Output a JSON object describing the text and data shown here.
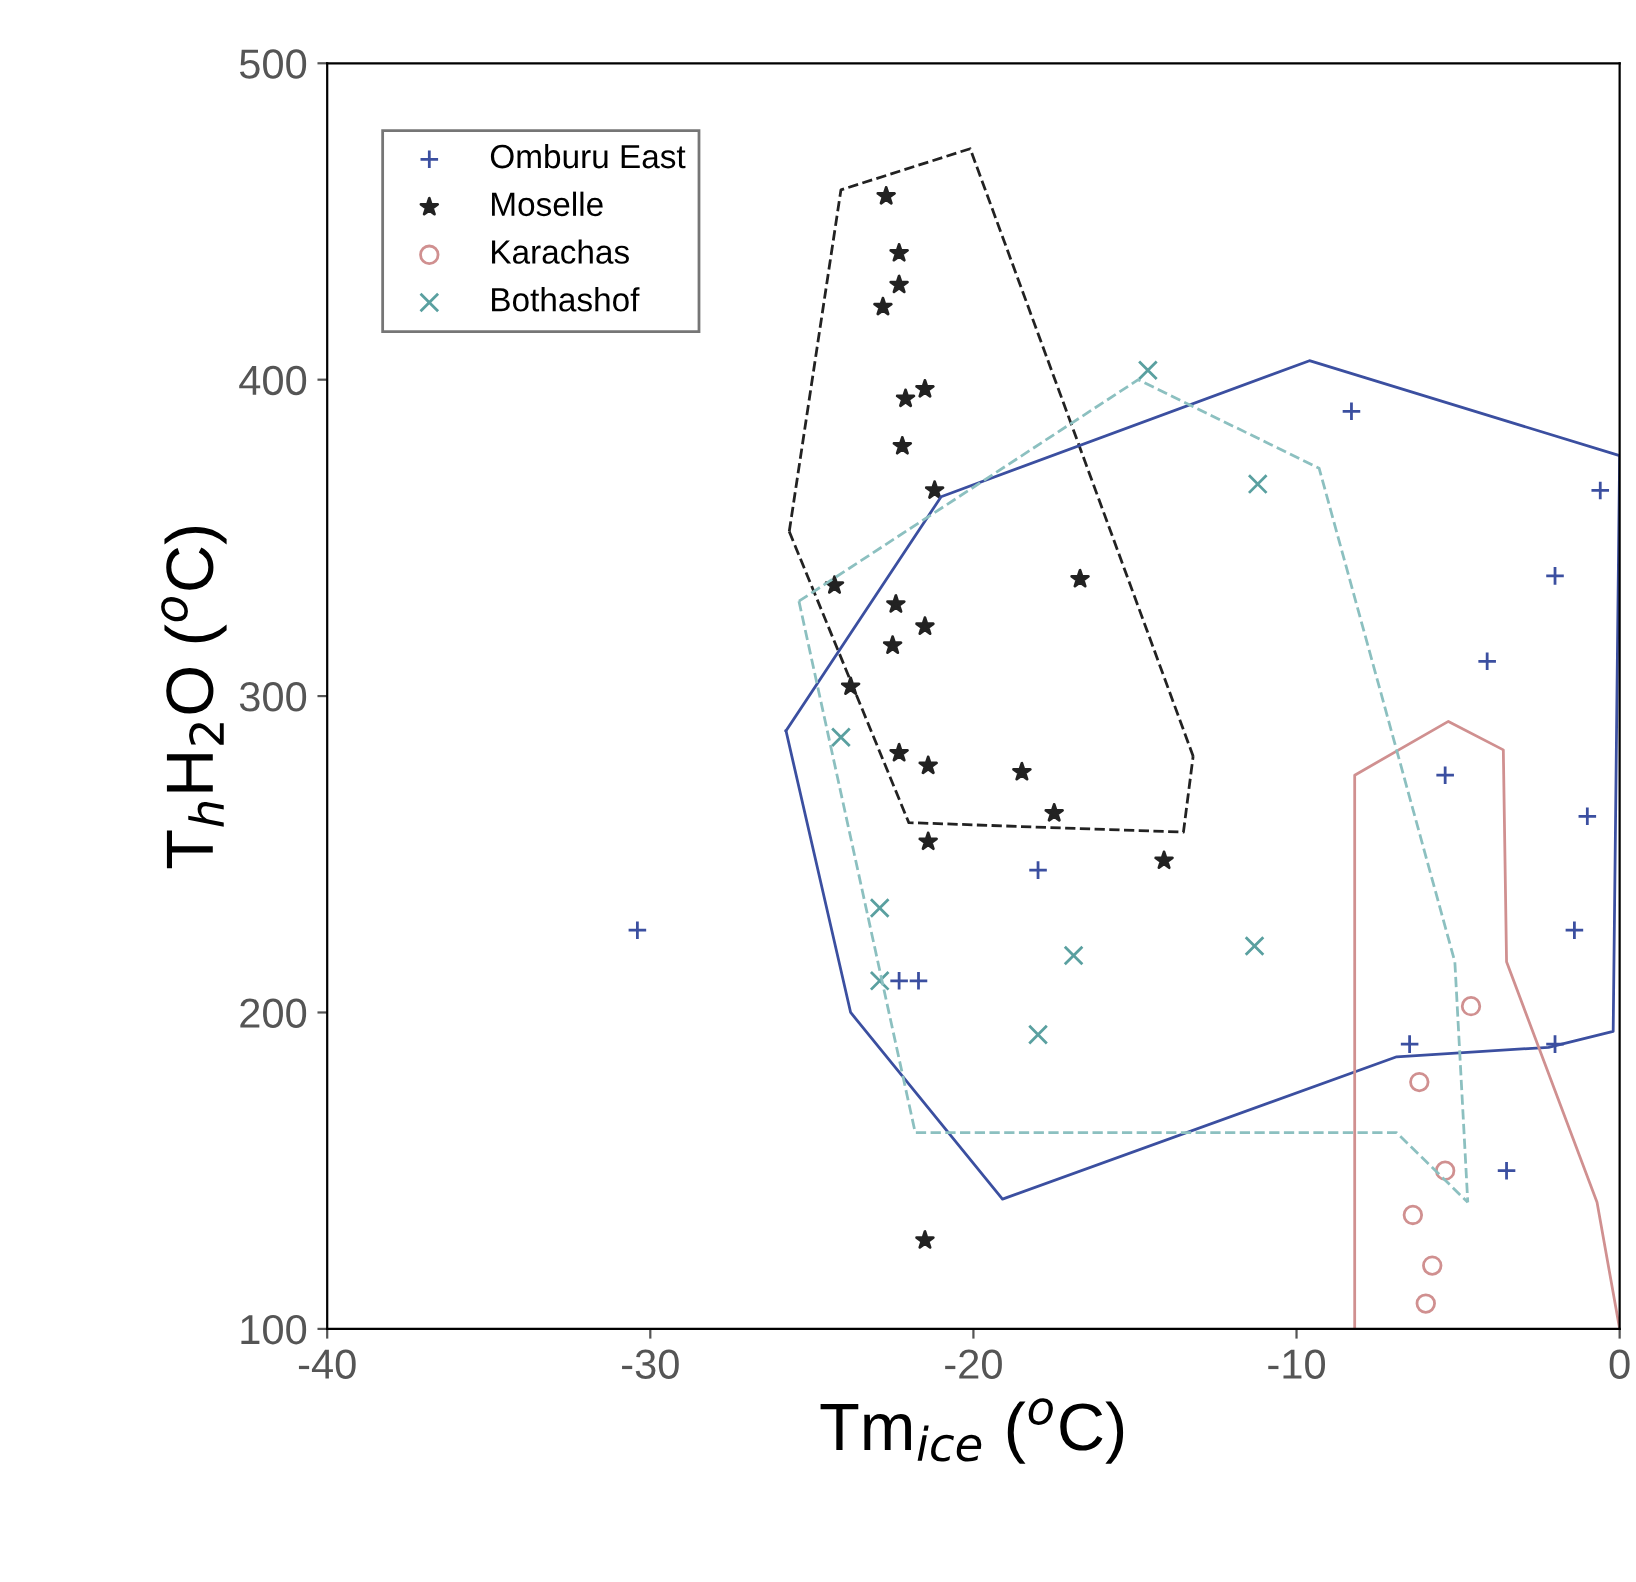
{
  "chart_data": {
    "type": "scatter",
    "xlabel": "Tm$_{ice}$ ($^{o}$C)",
    "ylabel": "T$_{h}$H$_{2}$O ($^{o}$C)",
    "xlim": [
      -40,
      0
    ],
    "ylim": [
      100,
      500
    ],
    "xticks": [
      -40,
      -30,
      -20,
      -10,
      0
    ],
    "yticks": [
      100,
      200,
      300,
      400,
      500
    ],
    "grid": false,
    "legend": "top left",
    "series": [
      {
        "name": "Omburu East",
        "color": "#3b4fa0",
        "marker": "plus",
        "x": [
          -30.4,
          -8.3,
          -2.0,
          -4.1,
          -5.4,
          -1.0,
          -1.4,
          -6.5,
          -2.0,
          -3.5,
          -22.3,
          -21.7,
          -18.0,
          -0.6
        ],
        "values": [
          226,
          390,
          338,
          311,
          275,
          262,
          226,
          190,
          190,
          150,
          210,
          210,
          245,
          365
        ]
      },
      {
        "name": "Moselle",
        "color": "#222222",
        "marker": "star",
        "x": [
          -22.7,
          -22.3,
          -22.3,
          -22.8,
          -21.5,
          -22.1,
          -22.2,
          -21.2,
          -24.3,
          -22.4,
          -21.5,
          -22.5,
          -23.8,
          -22.3,
          -21.4,
          -21.4,
          -16.7,
          -18.5,
          -17.5,
          -14.1,
          -21.5
        ],
        "values": [
          458,
          440,
          430,
          423,
          397,
          394,
          379,
          365,
          335,
          329,
          322,
          316,
          303,
          282,
          278,
          254,
          337,
          276,
          263,
          248,
          128
        ]
      },
      {
        "name": "Karachas",
        "color": "#d09090",
        "marker": "circle",
        "x": [
          -4.6,
          -6.2,
          -5.4,
          -6.4,
          -5.8,
          -6.0
        ],
        "values": [
          202,
          178,
          150,
          136,
          120,
          108
        ]
      },
      {
        "name": "Bothashof",
        "color": "#5aa0a0",
        "marker": "cross",
        "x": [
          -22.9,
          -22.9,
          -24.1,
          -16.9,
          -18.0,
          -11.3,
          -11.2,
          -14.6
        ],
        "values": [
          233,
          210,
          287,
          218,
          193,
          221,
          367,
          403
        ]
      },
      {
        "type": "line",
        "color": "#222222",
        "line_style": "dashed",
        "x": [
          -25.7,
          -24.1,
          -20.1,
          -13.2
        ],
        "values": [
          352,
          460,
          473,
          281
        ]
      },
      {
        "type": "line",
        "color": "#222222",
        "line_style": "dashed",
        "x": [
          -25.7,
          -22.0,
          -13.5,
          -13.2
        ],
        "values": [
          352,
          260,
          257,
          281
        ]
      },
      {
        "type": "line",
        "color": "#3b4fa0",
        "line_style": "solid",
        "x": [
          -25.8,
          -21.0,
          -9.6,
          0
        ],
        "values": [
          289,
          363,
          406,
          376
        ]
      },
      {
        "type": "line",
        "color": "#3b4fa0",
        "line_style": "solid",
        "x": [
          -25.8,
          -23.8,
          -19.1,
          -6.9,
          -2.2,
          -0.2,
          0
        ],
        "values": [
          289,
          200,
          141,
          186,
          189,
          194,
          376
        ]
      },
      {
        "type": "line",
        "color": "#d09090",
        "line_style": "solid",
        "x": [
          -8.2,
          -8.2,
          -5.3,
          -3.6,
          -3.5,
          -0.7,
          0
        ],
        "values": [
          100,
          275,
          292,
          283,
          216,
          140,
          100
        ]
      },
      {
        "type": "line",
        "color": "#8cc0c0",
        "line_style": "dashed",
        "x": [
          -25.4,
          -14.9,
          -9.3,
          -5.1,
          -4.7
        ],
        "values": [
          330,
          400,
          372,
          216,
          140
        ]
      },
      {
        "type": "line",
        "color": "#8cc0c0",
        "line_style": "dashed",
        "x": [
          -25.4,
          -21.8,
          -6.9,
          -4.7
        ],
        "values": [
          330,
          162,
          162,
          140
        ]
      }
    ]
  }
}
